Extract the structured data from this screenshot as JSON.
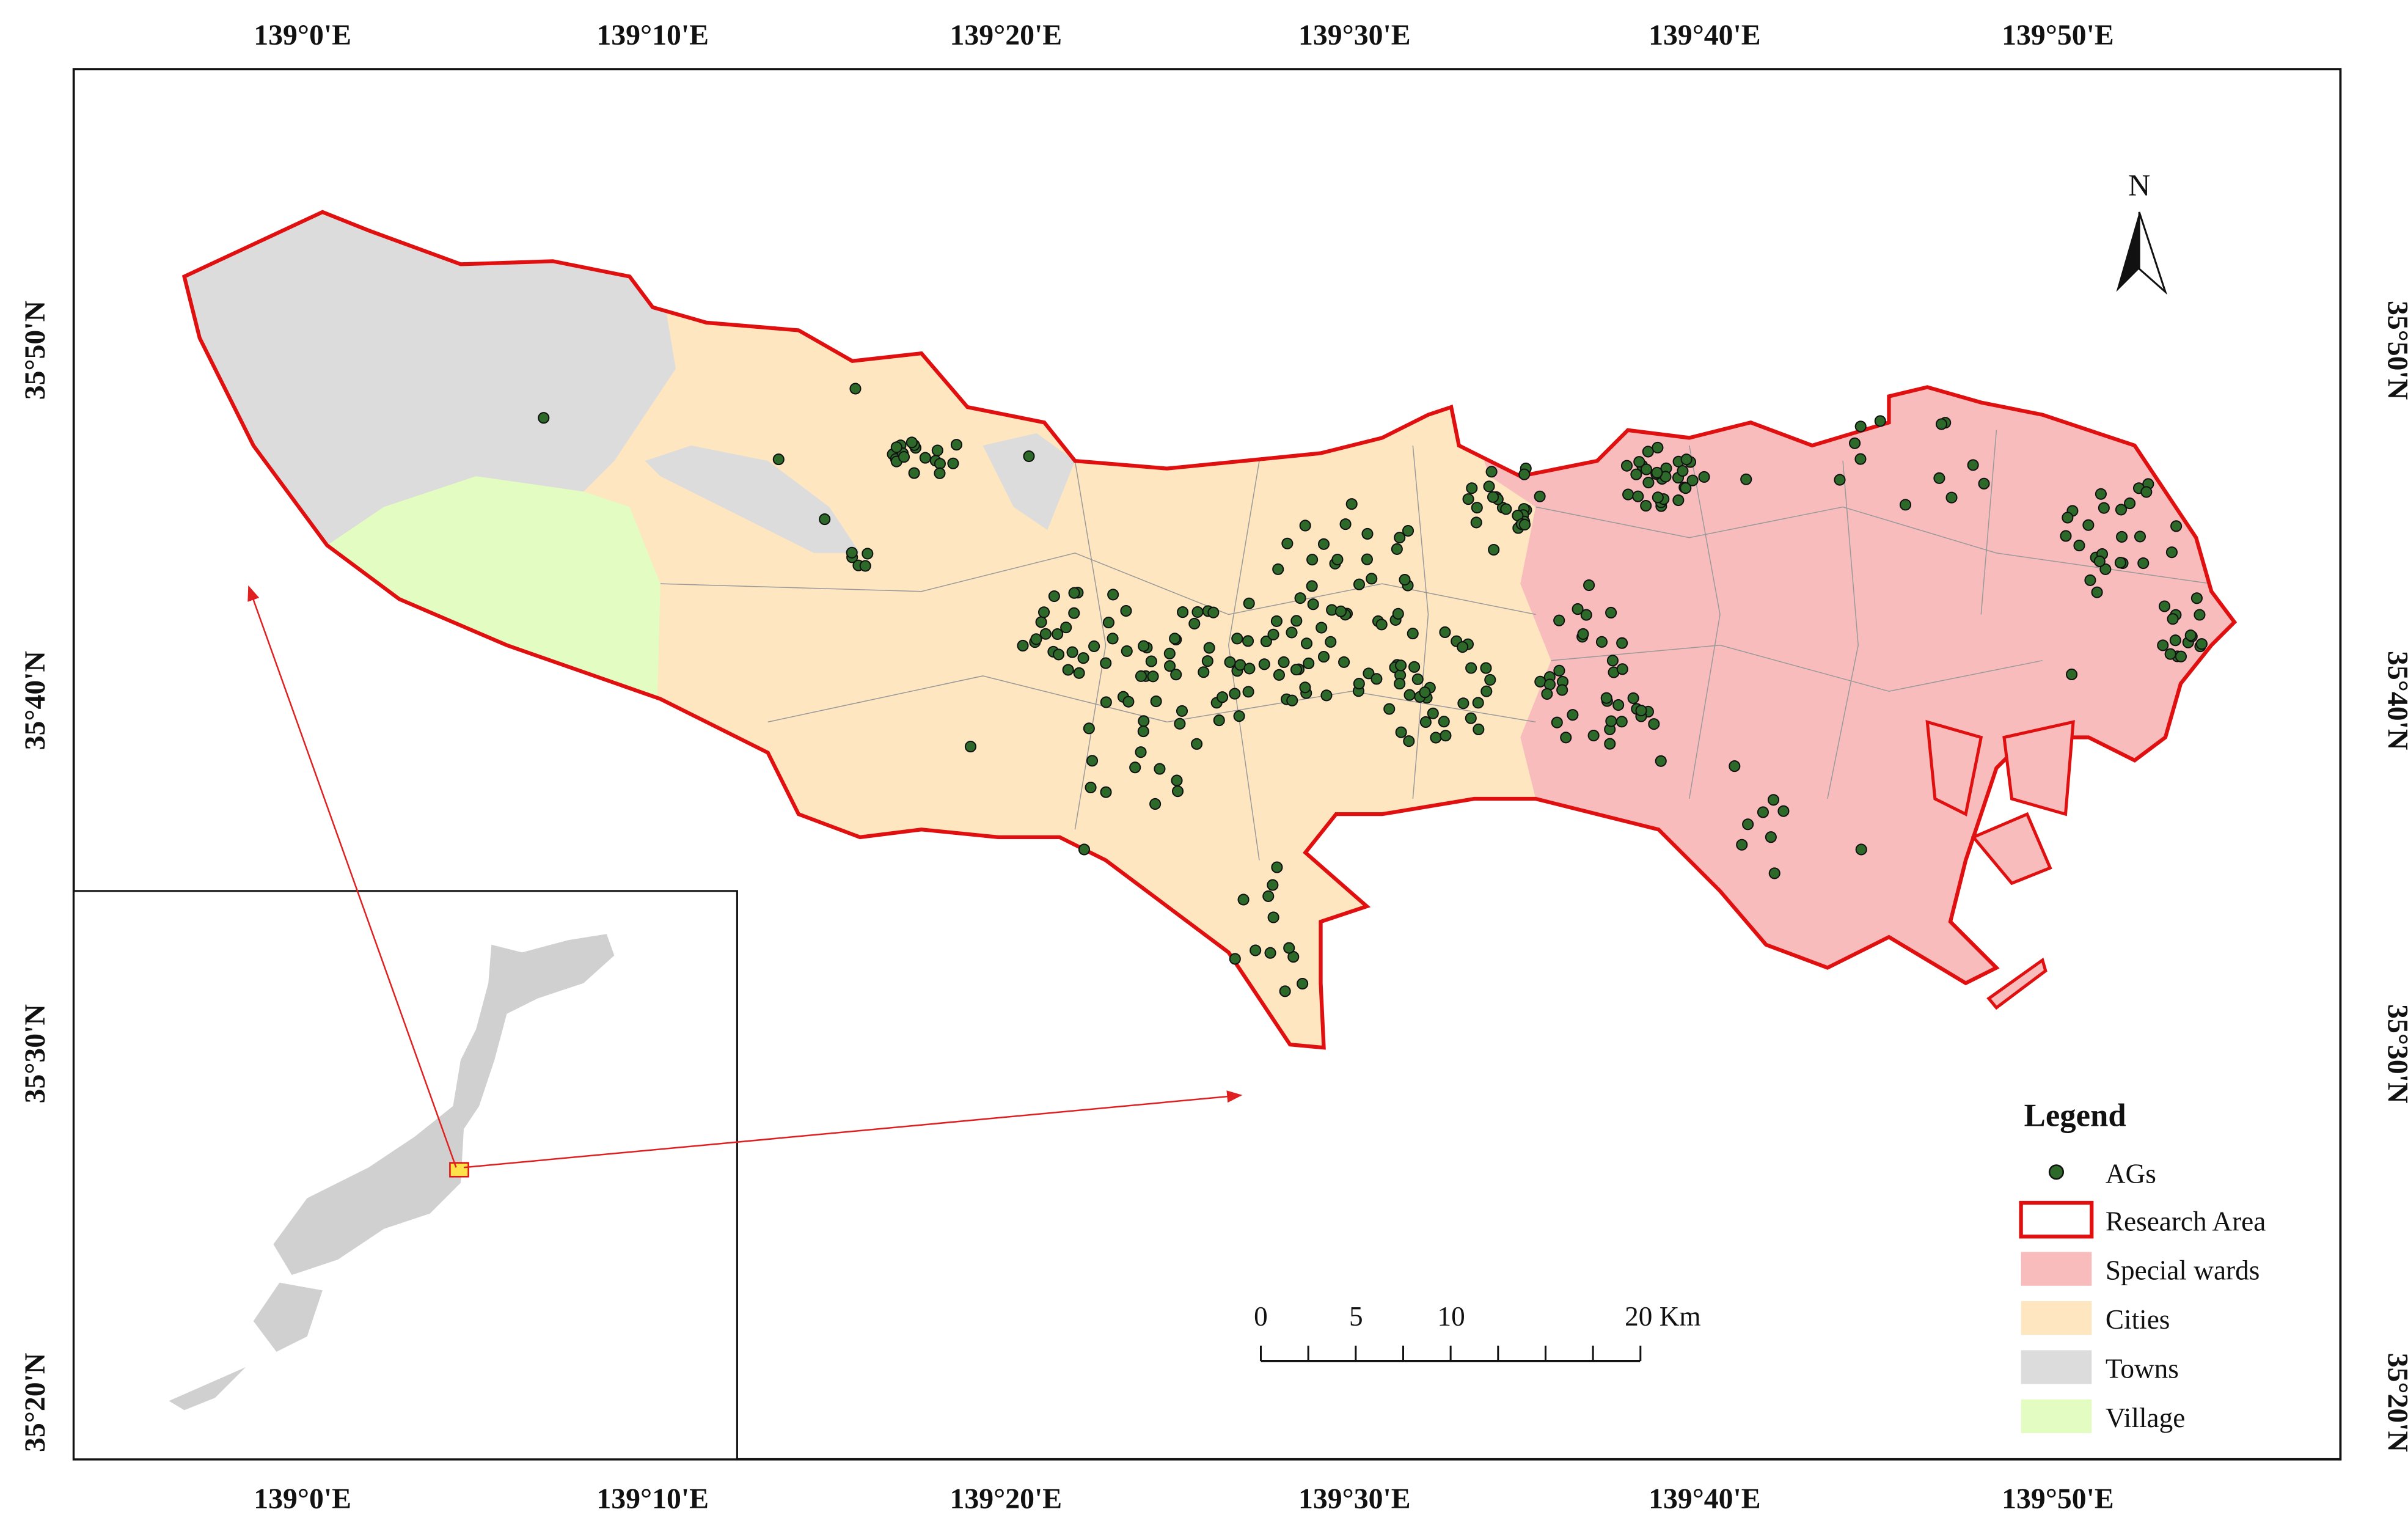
{
  "map": {
    "graticule": {
      "longitude": [
        "139°0'E",
        "139°10'E",
        "139°20'E",
        "139°30'E",
        "139°40'E",
        "139°50'E"
      ],
      "latitude": [
        "35°50'N",
        "35°40'N",
        "35°30'N",
        "35°20'N"
      ]
    },
    "north": "N",
    "scale_bar": [
      "0",
      "5",
      "10",
      "20 Km"
    ],
    "legend": {
      "title": "Legend",
      "items": [
        "AGs",
        "Research Area",
        "Special wards",
        "Cities",
        "Towns",
        "Village"
      ]
    }
  }
}
